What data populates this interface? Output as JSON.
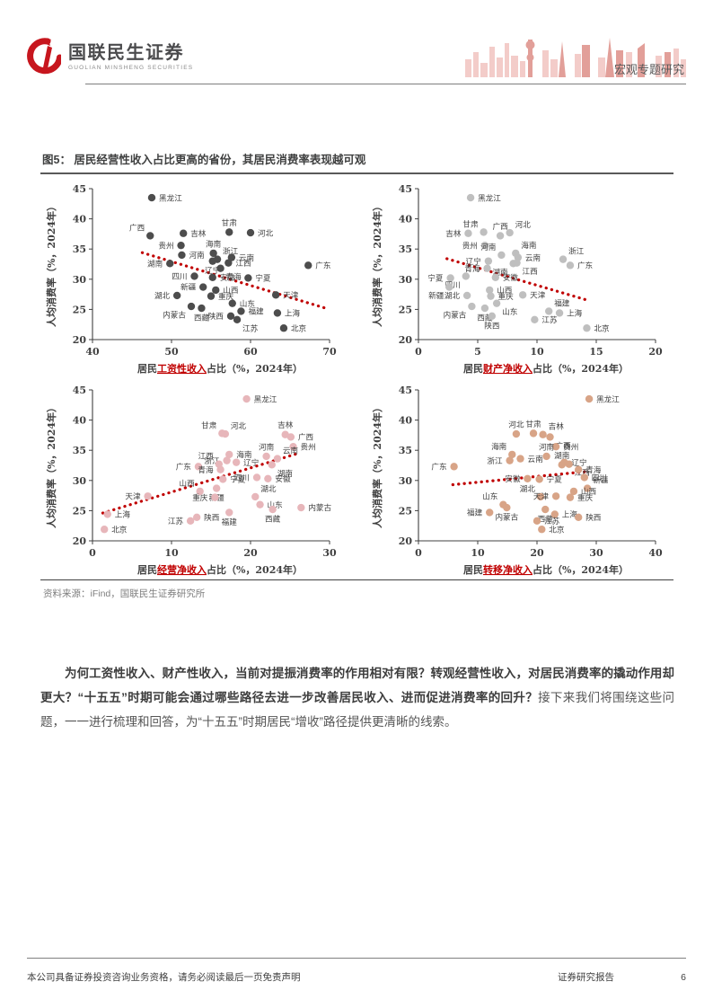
{
  "header": {
    "brand_cn": "国联民生证券",
    "brand_en": "GUOLIAN MINSHENG SECURITIES",
    "right_label": "宏观专题研究",
    "accent_color": "#c7161e"
  },
  "figure": {
    "title": "图5： 居民经营性收入占比更高的省份，其居民消费率表现越可观",
    "source": "资料来源：iFind，国联民生证券研究所"
  },
  "chart_data": [
    {
      "type": "scatter",
      "ylabel": "人均消费率（%，2024年）",
      "xlabel_prefix": "居民",
      "xlabel_key": "工资性收入",
      "xlabel_suffix": "占比（%，2024年）",
      "xlim": [
        40,
        70
      ],
      "ylim": [
        20,
        45
      ],
      "xticks": [
        40,
        50,
        60,
        70
      ],
      "yticks": [
        20,
        25,
        30,
        35,
        40,
        45
      ],
      "dot_color": "#4d4d4d",
      "trend_color": "#c00000",
      "trend": [
        46.3,
        34.4,
        69.5,
        25.2
      ],
      "points": [
        [
          "黑龙江",
          47.5,
          43.5,
          "r"
        ],
        [
          "广西",
          47.3,
          37.2,
          "tl"
        ],
        [
          "吉林",
          51.5,
          37.6,
          "r"
        ],
        [
          "甘肃",
          57.3,
          37.8,
          "t"
        ],
        [
          "河北",
          60.0,
          37.7,
          "r"
        ],
        [
          "贵州",
          51.2,
          35.6,
          "l"
        ],
        [
          "河南",
          51.3,
          34.0,
          "r"
        ],
        [
          "海南",
          55.3,
          34.3,
          "t"
        ],
        [
          "云南",
          57.6,
          33.6,
          "r"
        ],
        [
          "湖南",
          49.8,
          32.6,
          "l"
        ],
        [
          "辽宁",
          55.2,
          33.0,
          "b"
        ],
        [
          "浙江",
          55.8,
          33.3,
          "tr"
        ],
        [
          "江西",
          57.2,
          32.7,
          "r"
        ],
        [
          "青海",
          56.2,
          31.8,
          "br"
        ],
        [
          "广东",
          67.3,
          32.3,
          "r"
        ],
        [
          "四川",
          52.9,
          30.5,
          "l"
        ],
        [
          "安徽",
          55.2,
          30.3,
          "r"
        ],
        [
          "宁夏",
          59.7,
          30.2,
          "r"
        ],
        [
          "新疆",
          54.0,
          28.7,
          "l"
        ],
        [
          "山西",
          55.6,
          28.2,
          "r"
        ],
        [
          "重庆",
          55.0,
          27.2,
          "r"
        ],
        [
          "天津",
          63.2,
          27.4,
          "r"
        ],
        [
          "湖北",
          50.7,
          27.3,
          "l"
        ],
        [
          "山东",
          57.7,
          26.0,
          "r"
        ],
        [
          "内蒙古",
          52.5,
          25.5,
          "bl"
        ],
        [
          "西藏",
          53.8,
          25.2,
          "b"
        ],
        [
          "福建",
          58.8,
          24.7,
          "r"
        ],
        [
          "上海",
          63.4,
          24.4,
          "r"
        ],
        [
          "陕西",
          57.5,
          23.9,
          "l"
        ],
        [
          "江苏",
          58.3,
          23.3,
          "br"
        ],
        [
          "北京",
          64.2,
          21.9,
          "r"
        ]
      ]
    },
    {
      "type": "scatter",
      "ylabel": "人均消费率（%，2024年）",
      "xlabel_prefix": "居民",
      "xlabel_key": "财产净收入",
      "xlabel_suffix": "占比（%，2024年）",
      "xlim": [
        0,
        20
      ],
      "ylim": [
        20,
        45
      ],
      "xticks": [
        0,
        5,
        10,
        15,
        20
      ],
      "yticks": [
        20,
        25,
        30,
        35,
        40,
        45
      ],
      "dot_color": "#bfbfbf",
      "trend_color": "#c00000",
      "trend": [
        2.4,
        33.4,
        14.3,
        26.5
      ],
      "points": [
        [
          "黑龙江",
          4.4,
          43.5,
          "r"
        ],
        [
          "甘肃",
          5.5,
          37.8,
          "tl"
        ],
        [
          "广西",
          6.9,
          37.2,
          "t"
        ],
        [
          "河北",
          7.7,
          37.7,
          "tr"
        ],
        [
          "吉林",
          4.2,
          37.6,
          "l"
        ],
        [
          "贵州",
          5.6,
          35.6,
          "l"
        ],
        [
          "海南",
          8.2,
          34.3,
          "tr"
        ],
        [
          "河南",
          7.0,
          34.0,
          "tl"
        ],
        [
          "云南",
          8.4,
          33.6,
          "r"
        ],
        [
          "辽宁",
          5.9,
          33.0,
          "l"
        ],
        [
          "浙江",
          12.2,
          33.3,
          "tr"
        ],
        [
          "江西",
          8.3,
          32.7,
          "br"
        ],
        [
          "广东",
          12.8,
          32.3,
          "r"
        ],
        [
          "湖南",
          8.0,
          32.6,
          "bl"
        ],
        [
          "青海",
          5.8,
          31.8,
          "l"
        ],
        [
          "宁夏",
          2.7,
          30.2,
          "l"
        ],
        [
          "四川",
          4.0,
          30.5,
          "bl"
        ],
        [
          "安徽",
          6.5,
          30.3,
          "r"
        ],
        [
          "新疆",
          2.6,
          28.7,
          "bl"
        ],
        [
          "湖北",
          4.1,
          27.3,
          "l"
        ],
        [
          "山西",
          6.0,
          28.2,
          "r"
        ],
        [
          "重庆",
          6.1,
          27.2,
          "r"
        ],
        [
          "天津",
          8.8,
          27.4,
          "r"
        ],
        [
          "山东",
          6.6,
          26.0,
          "br"
        ],
        [
          "内蒙古",
          4.5,
          25.5,
          "bl"
        ],
        [
          "西藏",
          5.6,
          25.2,
          "b"
        ],
        [
          "陕西",
          6.2,
          23.9,
          "b"
        ],
        [
          "福建",
          11.0,
          24.7,
          "tr"
        ],
        [
          "上海",
          11.9,
          24.4,
          "r"
        ],
        [
          "江苏",
          9.8,
          23.3,
          "r"
        ],
        [
          "北京",
          14.2,
          21.9,
          "r"
        ]
      ]
    },
    {
      "type": "scatter",
      "ylabel": "人均消费率（%，2024年）",
      "xlabel_prefix": "居民",
      "xlabel_key": "经营净收入",
      "xlabel_suffix": "占比（%，2024年）",
      "xlim": [
        0,
        30
      ],
      "ylim": [
        20,
        45
      ],
      "xticks": [
        0,
        10,
        20,
        30
      ],
      "yticks": [
        20,
        25,
        30,
        35,
        40,
        45
      ],
      "dot_color": "#e7b6ba",
      "trend_color": "#c00000",
      "trend": [
        1.3,
        24.6,
        25.8,
        34.4
      ],
      "points": [
        [
          "黑龙江",
          19.5,
          43.5,
          "r"
        ],
        [
          "甘肃",
          16.4,
          37.8,
          "tl"
        ],
        [
          "河北",
          16.8,
          37.7,
          "tr"
        ],
        [
          "吉林",
          24.4,
          37.6,
          "t"
        ],
        [
          "广西",
          25.1,
          37.2,
          "r"
        ],
        [
          "贵州",
          25.4,
          35.6,
          "r"
        ],
        [
          "海南",
          17.3,
          34.3,
          "r"
        ],
        [
          "河南",
          22.0,
          34.0,
          "t"
        ],
        [
          "云南",
          23.4,
          33.6,
          "tr"
        ],
        [
          "浙江",
          17.0,
          33.3,
          "l"
        ],
        [
          "辽宁",
          18.2,
          33.0,
          "r"
        ],
        [
          "江西",
          16.0,
          32.7,
          "tl"
        ],
        [
          "湖南",
          22.7,
          32.6,
          "br"
        ],
        [
          "广东",
          13.4,
          32.3,
          "l"
        ],
        [
          "青海",
          16.2,
          31.8,
          "l"
        ],
        [
          "四川",
          20.8,
          30.5,
          "l"
        ],
        [
          "安徽",
          22.2,
          30.3,
          "r"
        ],
        [
          "宁夏",
          16.5,
          30.2,
          "r"
        ],
        [
          "新疆",
          15.7,
          28.7,
          "b"
        ],
        [
          "山西",
          13.6,
          28.2,
          "tl"
        ],
        [
          "湖北",
          20.6,
          27.3,
          "tr"
        ],
        [
          "天津",
          7.0,
          27.4,
          "l"
        ],
        [
          "重庆",
          15.5,
          27.2,
          "l"
        ],
        [
          "山东",
          21.2,
          26.0,
          "r"
        ],
        [
          "内蒙古",
          26.4,
          25.5,
          "r"
        ],
        [
          "西藏",
          22.8,
          25.2,
          "b"
        ],
        [
          "福建",
          17.3,
          24.7,
          "b"
        ],
        [
          "上海",
          1.9,
          24.4,
          "r"
        ],
        [
          "陕西",
          13.2,
          23.9,
          "r"
        ],
        [
          "江苏",
          12.4,
          23.3,
          "l"
        ],
        [
          "北京",
          1.5,
          21.9,
          "r"
        ]
      ]
    },
    {
      "type": "scatter",
      "ylabel": "人均消费率（%，2024年）",
      "xlabel_prefix": "居民",
      "xlabel_key": "转移净收入",
      "xlabel_suffix": "占比（%，2024年）",
      "xlim": [
        0,
        40
      ],
      "ylim": [
        20,
        45
      ],
      "xticks": [
        0,
        10,
        20,
        30,
        40
      ],
      "yticks": [
        20,
        25,
        30,
        35,
        40,
        45
      ],
      "dot_color": "#d8a487",
      "trend_color": "#c00000",
      "trend": [
        5.8,
        29.3,
        28.6,
        31.5
      ],
      "points": [
        [
          "黑龙江",
          28.8,
          43.5,
          "r"
        ],
        [
          "甘肃",
          19.4,
          37.8,
          "t"
        ],
        [
          "河北",
          16.5,
          37.7,
          "t"
        ],
        [
          "吉林",
          21.0,
          37.6,
          "tr"
        ],
        [
          "广西",
          22.2,
          37.2,
          "br"
        ],
        [
          "贵州",
          23.2,
          35.6,
          "r"
        ],
        [
          "海南",
          15.8,
          34.3,
          "tl"
        ],
        [
          "河南",
          21.6,
          34.0,
          "t"
        ],
        [
          "云南",
          17.2,
          33.6,
          "r"
        ],
        [
          "浙江",
          15.4,
          33.3,
          "l"
        ],
        [
          "辽宁",
          24.6,
          33.0,
          "r"
        ],
        [
          "江西",
          25.4,
          32.7,
          "br"
        ],
        [
          "湖南",
          24.2,
          32.6,
          "t"
        ],
        [
          "广东",
          6.0,
          32.3,
          "l"
        ],
        [
          "青海",
          27.0,
          31.8,
          "r"
        ],
        [
          "四川",
          28.0,
          30.5,
          "r"
        ],
        [
          "安徽",
          18.4,
          30.3,
          "l"
        ],
        [
          "宁夏",
          20.4,
          30.2,
          "r"
        ],
        [
          "新疆",
          28.5,
          28.7,
          "tr"
        ],
        [
          "山西",
          26.2,
          28.2,
          "r"
        ],
        [
          "湖北",
          20.6,
          27.3,
          "tl"
        ],
        [
          "天津",
          23.2,
          27.4,
          "l"
        ],
        [
          "重庆",
          25.6,
          27.2,
          "r"
        ],
        [
          "山东",
          14.3,
          26.0,
          "tl"
        ],
        [
          "内蒙古",
          14.9,
          25.5,
          "b"
        ],
        [
          "西藏",
          21.4,
          25.2,
          "b"
        ],
        [
          "福建",
          12.0,
          24.7,
          "l"
        ],
        [
          "上海",
          23.0,
          24.4,
          "r"
        ],
        [
          "陕西",
          27.0,
          23.9,
          "r"
        ],
        [
          "江苏",
          20.0,
          23.3,
          "r"
        ],
        [
          "北京",
          20.8,
          21.9,
          "r"
        ]
      ]
    }
  ],
  "body": {
    "paragraph_bold": "为何工资性收入、财产性收入，当前对提振消费率的作用相对有限？转观经营性收入，对居民消费率的撬动作用却更大？“十五五”时期可能会通过哪些路径去进一步改善居民收入、进而促进消费率的回升？",
    "paragraph_regular": "接下来我们将围绕这些问题，一一进行梳理和回答，为“十五五”时期居民“增收”路径提供更清晰的线索。"
  },
  "footer": {
    "left": "本公司具备证券投资咨询业务资格，请务必阅读最后一页免责声明",
    "right": "证券研究报告",
    "page": "6"
  }
}
